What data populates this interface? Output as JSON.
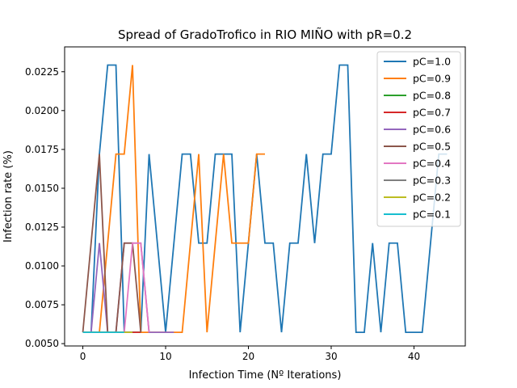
{
  "chart_data": {
    "type": "line",
    "title": "Spread of GradoTrofico in RIO MIÑO with pR=0.2",
    "xlabel": "Infection Time (Nº Iterations)",
    "ylabel": "Infection rate (%)",
    "xlim": [
      -2.2,
      46.2
    ],
    "ylim": [
      0.00485,
      0.0241
    ],
    "xticks": [
      0,
      10,
      20,
      30,
      40
    ],
    "xtick_labels": [
      "0",
      "10",
      "20",
      "30",
      "40"
    ],
    "yticks": [
      0.005,
      0.0075,
      0.01,
      0.0125,
      0.015,
      0.0175,
      0.02,
      0.0225
    ],
    "ytick_labels": [
      "0.0050",
      "0.0075",
      "0.0100",
      "0.0125",
      "0.0150",
      "0.0175",
      "0.0200",
      "0.0225"
    ],
    "grid": false,
    "legend_position": "top-right",
    "series": [
      {
        "name": "pC=1.0",
        "color": "#1f77b4",
        "x": [
          0,
          1,
          2,
          3,
          4,
          5,
          6,
          7,
          8,
          9,
          10,
          11,
          12,
          13,
          14,
          15,
          16,
          17,
          18,
          19,
          20,
          21,
          22,
          23,
          24,
          25,
          26,
          27,
          28,
          29,
          30,
          31,
          32,
          33,
          34,
          35,
          36,
          37,
          38,
          39,
          40,
          41,
          42,
          43,
          44
        ],
        "y": [
          0.00573,
          0.00573,
          0.0172,
          0.02293,
          0.02293,
          0.00573,
          0.00573,
          0.00573,
          0.0172,
          0.01147,
          0.00573,
          0.01147,
          0.0172,
          0.0172,
          0.01147,
          0.01147,
          0.0172,
          0.0172,
          0.0172,
          0.00573,
          0.01147,
          0.0172,
          0.01147,
          0.01147,
          0.00573,
          0.01147,
          0.01147,
          0.0172,
          0.01147,
          0.0172,
          0.0172,
          0.02293,
          0.02293,
          0.00573,
          0.00573,
          0.01147,
          0.00573,
          0.01147,
          0.01147,
          0.00573,
          0.00573,
          0.00573,
          0.01147,
          0.0172,
          0.0172
        ]
      },
      {
        "name": "pC=0.9",
        "color": "#ff7f0e",
        "x": [
          0,
          1,
          2,
          3,
          4,
          5,
          6,
          7,
          8,
          9,
          10,
          11,
          12,
          13,
          14,
          15,
          16,
          17,
          18,
          19,
          20,
          21,
          22
        ],
        "y": [
          0.00573,
          0.00573,
          0.00573,
          0.01147,
          0.0172,
          0.0172,
          0.02293,
          0.00573,
          0.00573,
          0.00573,
          0.00573,
          0.00573,
          0.00573,
          0.01147,
          0.0172,
          0.00573,
          0.01147,
          0.0172,
          0.01147,
          0.01147,
          0.01147,
          0.0172,
          0.0172
        ]
      },
      {
        "name": "pC=0.8",
        "color": "#2ca02c",
        "x": [
          0,
          1,
          2,
          3,
          4,
          5,
          6,
          7
        ],
        "y": [
          0.00573,
          0.00573,
          0.00573,
          0.00573,
          0.00573,
          0.00573,
          0.00573,
          0.00573
        ]
      },
      {
        "name": "pC=0.7",
        "color": "#d62728",
        "x": [
          0,
          1,
          2,
          3,
          4,
          5,
          6,
          7
        ],
        "y": [
          0.00573,
          0.00573,
          0.00573,
          0.00573,
          0.00573,
          0.00573,
          0.00573,
          0.00573
        ]
      },
      {
        "name": "pC=0.6",
        "color": "#9467bd",
        "x": [
          0,
          1,
          2,
          3,
          4,
          5,
          6,
          7,
          8,
          9,
          10,
          11
        ],
        "y": [
          0.00573,
          0.00573,
          0.01147,
          0.00573,
          0.00573,
          0.01147,
          0.01147,
          0.01147,
          0.00573,
          0.00573,
          0.00573,
          0.00573
        ]
      },
      {
        "name": "pC=0.5",
        "color": "#8c564b",
        "x": [
          0,
          1,
          2,
          3,
          4,
          5,
          6,
          7
        ],
        "y": [
          0.00573,
          0.01147,
          0.0172,
          0.00573,
          0.00573,
          0.01147,
          0.01147,
          0.00573
        ]
      },
      {
        "name": "pC=0.4",
        "color": "#e377c2",
        "x": [
          0,
          1,
          2,
          3,
          4,
          5,
          6,
          7,
          8
        ],
        "y": [
          0.00573,
          0.00573,
          0.00573,
          0.00573,
          0.00573,
          0.00573,
          0.01147,
          0.01147,
          0.00573
        ]
      },
      {
        "name": "pC=0.3",
        "color": "#7f7f7f",
        "x": [
          0,
          1,
          2,
          3,
          4,
          5,
          6
        ],
        "y": [
          0.00573,
          0.00573,
          0.00573,
          0.00573,
          0.00573,
          0.00573,
          0.00573
        ]
      },
      {
        "name": "pC=0.2",
        "color": "#bcbd22",
        "x": [
          0,
          1,
          2,
          3,
          4,
          5,
          6
        ],
        "y": [
          0.00573,
          0.00573,
          0.00573,
          0.00573,
          0.00573,
          0.00573,
          0.00573
        ]
      },
      {
        "name": "pC=0.1",
        "color": "#17becf",
        "x": [
          0,
          1,
          2,
          3,
          4,
          5
        ],
        "y": [
          0.00573,
          0.00573,
          0.00573,
          0.00573,
          0.00573,
          0.00573
        ]
      }
    ]
  }
}
